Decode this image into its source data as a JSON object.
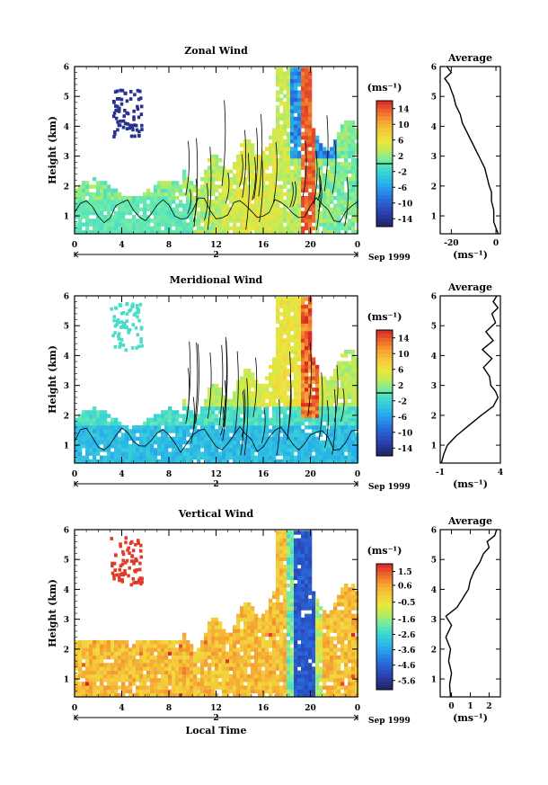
{
  "chart_data": [
    {
      "type": "heatmap",
      "title": "Zonal Wind",
      "ylabel": "Height (km)",
      "ylim": [
        0.4,
        6
      ],
      "y_ticks": [
        "1",
        "2",
        "3",
        "4",
        "5",
        "6"
      ],
      "x_ticks": [
        "0",
        "4",
        "8",
        "12",
        "16",
        "20",
        "0"
      ],
      "date_marker": "2",
      "date_label": "Sep 1999",
      "colorbar": {
        "unit": "(ms⁻¹)",
        "ticks": [
          "14",
          "10",
          "6",
          "2",
          "-2",
          "-6",
          "-10",
          "-14"
        ],
        "range": [
          -16,
          16
        ],
        "zero_line": 0
      },
      "average": {
        "title": "Average",
        "xlabel": "(ms⁻¹)",
        "x_ticks": [
          "-20",
          "0"
        ],
        "xlim": [
          -25,
          2
        ],
        "y_ticks": [
          "1",
          "2",
          "3",
          "4",
          "5",
          "6"
        ],
        "profile_height": [
          0.4,
          0.6,
          0.8,
          1.0,
          1.2,
          1.5,
          1.8,
          2.0,
          2.3,
          2.6,
          2.9,
          3.2,
          3.5,
          3.8,
          4.1,
          4.4,
          4.7,
          5.0,
          5.2,
          5.4,
          5.6,
          5.8,
          6.0
        ],
        "profile_value": [
          1,
          0,
          -1,
          -1,
          -1,
          -2,
          -2,
          -3,
          -4,
          -5,
          -7,
          -9,
          -11,
          -13,
          -15,
          -16,
          -18,
          -19,
          -20,
          -21,
          -23,
          -20,
          -22
        ]
      }
    },
    {
      "type": "heatmap",
      "title": "Meridional Wind",
      "ylabel": "Height (km)",
      "ylim": [
        0.4,
        6
      ],
      "y_ticks": [
        "1",
        "2",
        "3",
        "4",
        "5",
        "6"
      ],
      "x_ticks": [
        "0",
        "4",
        "8",
        "12",
        "16",
        "20",
        "0"
      ],
      "date_marker": "2",
      "date_label": "Sep 1999",
      "colorbar": {
        "unit": "(ms⁻¹)",
        "ticks": [
          "14",
          "10",
          "6",
          "2",
          "-2",
          "-6",
          "-10",
          "-14"
        ],
        "range": [
          -16,
          16
        ],
        "zero_line": 0
      },
      "average": {
        "title": "Average",
        "xlabel": "(ms⁻¹)",
        "x_ticks": [
          "-1",
          "4"
        ],
        "xlim": [
          -1,
          4
        ],
        "y_ticks": [
          "1",
          "2",
          "3",
          "4",
          "5",
          "6"
        ],
        "profile_height": [
          0.4,
          0.7,
          1.0,
          1.3,
          1.6,
          2.0,
          2.3,
          2.6,
          2.8,
          3.0,
          3.3,
          3.6,
          3.9,
          4.2,
          4.5,
          4.8,
          5.1,
          5.4,
          5.6,
          5.8,
          6.0
        ],
        "profile_value": [
          -0.9,
          -0.7,
          -0.4,
          0.3,
          1.2,
          2.4,
          3.4,
          3.8,
          3.6,
          3.2,
          3.1,
          2.6,
          3.3,
          2.5,
          3.4,
          2.8,
          3.6,
          3.3,
          3.8,
          3.4,
          3.7
        ]
      }
    },
    {
      "type": "heatmap",
      "title": "Vertical Wind",
      "ylabel": "Height (km)",
      "xlabel": "Local Time",
      "ylim": [
        0.4,
        6
      ],
      "y_ticks": [
        "1",
        "2",
        "3",
        "4",
        "5",
        "6"
      ],
      "x_ticks": [
        "0",
        "4",
        "8",
        "12",
        "16",
        "20",
        "0"
      ],
      "date_marker": "2",
      "date_label": "Sep 1999",
      "colorbar": {
        "unit": "(ms⁻¹)",
        "ticks": [
          "1.5",
          "0.6",
          "-0.5",
          "-1.6",
          "-2.6",
          "-3.6",
          "-4.6",
          "-5.6"
        ],
        "range": [
          -6.2,
          2.0
        ]
      },
      "average": {
        "title": "Average",
        "xlabel": "(ms⁻¹)",
        "x_ticks": [
          "0",
          "1",
          "2"
        ],
        "xlim": [
          -0.6,
          2.6
        ],
        "y_ticks": [
          "1",
          "2",
          "3",
          "4",
          "5",
          "6"
        ],
        "profile_height": [
          0.4,
          0.8,
          1.2,
          1.6,
          2.0,
          2.4,
          2.8,
          3.1,
          3.4,
          3.7,
          4.0,
          4.3,
          4.6,
          4.9,
          5.2,
          5.4,
          5.6,
          5.8,
          6.0
        ],
        "profile_value": [
          -0.05,
          -0.1,
          0.0,
          -0.15,
          -0.05,
          -0.3,
          0.0,
          -0.3,
          0.3,
          0.6,
          0.9,
          1.0,
          1.2,
          1.5,
          1.7,
          2.0,
          1.9,
          2.3,
          2.4
        ]
      }
    }
  ]
}
